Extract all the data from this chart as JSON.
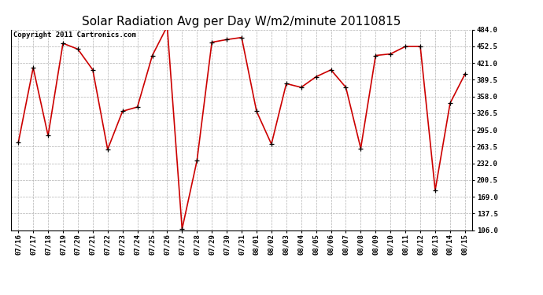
{
  "title": "Solar Radiation Avg per Day W/m2/minute 20110815",
  "copyright": "Copyright 2011 Cartronics.com",
  "labels": [
    "07/16",
    "07/17",
    "07/18",
    "07/19",
    "07/20",
    "07/21",
    "07/22",
    "07/23",
    "07/24",
    "07/25",
    "07/26",
    "07/27",
    "07/28",
    "07/29",
    "07/30",
    "07/31",
    "08/01",
    "08/02",
    "08/03",
    "08/04",
    "08/05",
    "08/06",
    "08/07",
    "08/08",
    "08/09",
    "08/10",
    "08/11",
    "08/12",
    "08/13",
    "08/14",
    "08/15"
  ],
  "values": [
    271,
    412,
    284,
    458,
    447,
    408,
    258,
    330,
    338,
    435,
    490,
    108,
    237,
    460,
    465,
    469,
    330,
    268,
    382,
    375,
    395,
    408,
    375,
    260,
    435,
    438,
    452,
    452,
    181,
    345,
    400
  ],
  "line_color": "#cc0000",
  "marker_color": "#000000",
  "background_color": "#ffffff",
  "plot_bg_color": "#ffffff",
  "grid_color": "#b0b0b0",
  "yticks": [
    106.0,
    137.5,
    169.0,
    200.5,
    232.0,
    263.5,
    295.0,
    326.5,
    358.0,
    389.5,
    421.0,
    452.5,
    484.0
  ],
  "ymin": 106.0,
  "ymax": 484.0,
  "title_fontsize": 11,
  "copyright_fontsize": 6.5,
  "tick_fontsize": 6.5
}
